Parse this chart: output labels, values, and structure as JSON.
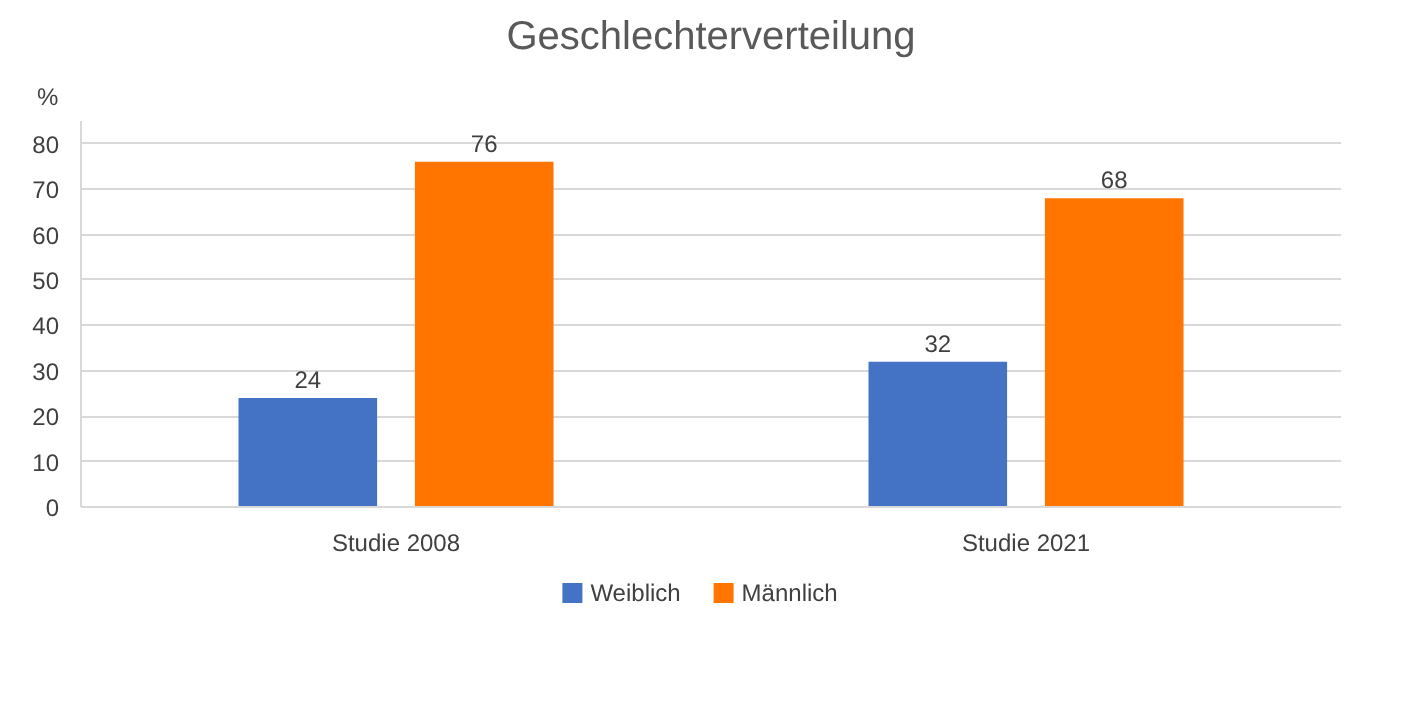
{
  "chart_data": {
    "type": "bar",
    "title": "Geschlechterverteilung",
    "ylabel": "%",
    "categories": [
      "Studie 2008",
      "Studie 2021"
    ],
    "series": [
      {
        "name": "Weiblich",
        "color": "#4472c4",
        "values": [
          24,
          32
        ]
      },
      {
        "name": "Männlich",
        "color": "#ff7500",
        "values": [
          76,
          68
        ]
      }
    ],
    "ylim": [
      0,
      85
    ],
    "yticks": [
      0,
      10,
      20,
      30,
      40,
      50,
      60,
      70,
      80
    ],
    "grid": "y",
    "data_labels": true,
    "legend": "bottom"
  }
}
